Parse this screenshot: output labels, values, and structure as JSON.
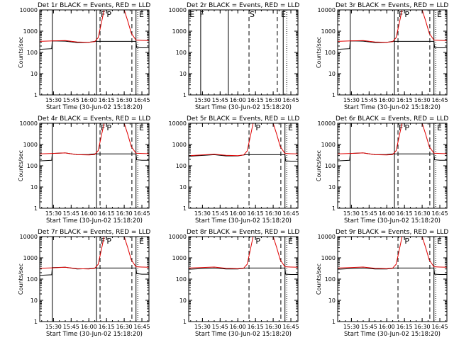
{
  "colors": {
    "background": "#ffffff",
    "axis": "#000000",
    "events": "#000000",
    "lld": "#e00000"
  },
  "x_ticks": [
    "15:30",
    "15:45",
    "16:00",
    "16:15",
    "16:30",
    "16:45"
  ],
  "y_ticks": [
    "1",
    "10",
    "100",
    "1000",
    "10000"
  ],
  "chart_data": [
    {
      "type": "line",
      "title": "Det 1r BLACK = Events, RED = LLD",
      "xlabel": "Start Time (30-Jun-02 15:18:20)",
      "ylabel": "Counts/sec",
      "show_ylabel": true,
      "show_tick_numbers": true,
      "yscale": "log",
      "ylim": [
        1,
        10000
      ],
      "xlim": [
        "15:18:20",
        "16:51:00"
      ],
      "lines": [
        {
          "style": "solid",
          "t": "15:29:00"
        },
        {
          "style": "solid",
          "t": "16:06:30"
        },
        {
          "style": "dashed",
          "t": "16:09:30"
        },
        {
          "style": "dashed",
          "t": "16:36:30"
        },
        {
          "style": "solid",
          "t": "16:40:00"
        },
        {
          "style": "dotted",
          "t": "16:41:30"
        }
      ],
      "markers": [
        {
          "text": "F",
          "t": "16:09:30"
        },
        {
          "text": "P",
          "t": "16:14:30"
        },
        {
          "text": "E",
          "t": "16:42:00"
        }
      ],
      "series": [
        {
          "name": "Events",
          "t": [
            "15:18:20",
            "15:28:30",
            "15:29:00",
            "15:40",
            "15:50",
            "16:00",
            "16:05",
            "16:06:30",
            "16:40:00",
            "16:40:30",
            "16:45",
            "16:51"
          ],
          "v": [
            140,
            150,
            350,
            340,
            290,
            300,
            330,
            330,
            330,
            170,
            165,
            165
          ]
        },
        {
          "name": "LLD",
          "t": [
            "15:18:20",
            "15:29",
            "15:40",
            "15:50",
            "16:00",
            "16:05",
            "16:08",
            "16:11",
            "16:13",
            "16:30",
            "16:33",
            "16:36",
            "16:40",
            "16:45",
            "16:51"
          ],
          "v": [
            330,
            350,
            360,
            310,
            300,
            320,
            500,
            3000,
            10000,
            10000,
            3000,
            800,
            380,
            370,
            360
          ]
        }
      ]
    },
    {
      "type": "line",
      "title": "Det 2r BLACK = Events, RED = LLD",
      "xlabel": "Start Time (30-Jun-02 15:18:20)",
      "ylabel": "",
      "show_ylabel": false,
      "show_tick_numbers": true,
      "yscale": "log",
      "ylim": [
        1,
        10000
      ],
      "xlim": [
        "15:18:20",
        "16:51:00"
      ],
      "lines": [
        {
          "style": "solid",
          "t": "15:28:30"
        },
        {
          "style": "solid",
          "t": "15:52:00"
        },
        {
          "style": "dashed",
          "t": "16:09:30"
        },
        {
          "style": "dashed",
          "t": "16:33:30"
        },
        {
          "style": "solid",
          "t": "16:38:30"
        },
        {
          "style": "dotted",
          "t": "16:41:30"
        }
      ],
      "markers": [
        {
          "text": "E",
          "t": "15:18:30"
        },
        {
          "text": "F",
          "t": "15:27:00"
        },
        {
          "text": "S",
          "t": "16:09:30"
        },
        {
          "text": "E",
          "t": "16:36:00"
        }
      ],
      "series": []
    },
    {
      "type": "line",
      "title": "Det 3r BLACK = Events, RED = LLD",
      "xlabel": "Start Time (30-Jun-02 15:18:20)",
      "ylabel": "Counts/sec",
      "show_ylabel": true,
      "show_tick_numbers": true,
      "yscale": "log",
      "ylim": [
        1,
        10000
      ],
      "xlim": [
        "15:18:20",
        "16:51:00"
      ],
      "lines": [
        {
          "style": "solid",
          "t": "15:29:00"
        },
        {
          "style": "solid",
          "t": "16:06:30"
        },
        {
          "style": "dashed",
          "t": "16:09:30"
        },
        {
          "style": "dashed",
          "t": "16:36:30"
        },
        {
          "style": "solid",
          "t": "16:40:00"
        },
        {
          "style": "dotted",
          "t": "16:41:30"
        }
      ],
      "markers": [
        {
          "text": "F",
          "t": "16:09:30"
        },
        {
          "text": "P",
          "t": "16:14:30"
        },
        {
          "text": "E",
          "t": "16:42:00"
        }
      ],
      "series": [
        {
          "name": "Events",
          "t": [
            "15:18:20",
            "15:28:30",
            "15:29:00",
            "15:40",
            "15:50",
            "16:00",
            "16:05",
            "16:06:30",
            "16:40:00",
            "16:40:30",
            "16:45",
            "16:51"
          ],
          "v": [
            140,
            150,
            350,
            340,
            290,
            300,
            330,
            330,
            330,
            170,
            165,
            165
          ]
        },
        {
          "name": "LLD",
          "t": [
            "15:18:20",
            "15:29",
            "15:40",
            "15:50",
            "16:00",
            "16:05",
            "16:08",
            "16:11",
            "16:13",
            "16:30",
            "16:33",
            "16:36",
            "16:40",
            "16:45",
            "16:51"
          ],
          "v": [
            330,
            350,
            360,
            310,
            300,
            320,
            500,
            3000,
            10000,
            10000,
            3000,
            800,
            380,
            370,
            360
          ]
        }
      ]
    },
    {
      "type": "line",
      "title": "Det 4r BLACK = Events, RED = LLD",
      "xlabel": "Start Time (30-Jun-02 15:18:20)",
      "ylabel": "Counts/sec",
      "show_ylabel": true,
      "show_tick_numbers": true,
      "yscale": "log",
      "ylim": [
        1,
        10000
      ],
      "xlim": [
        "15:18:20",
        "16:51:00"
      ],
      "lines": [
        {
          "style": "solid",
          "t": "15:29:00"
        },
        {
          "style": "solid",
          "t": "16:06:30"
        },
        {
          "style": "dashed",
          "t": "16:09:30"
        },
        {
          "style": "dashed",
          "t": "16:36:30"
        },
        {
          "style": "solid",
          "t": "16:40:00"
        },
        {
          "style": "dotted",
          "t": "16:41:30"
        }
      ],
      "markers": [
        {
          "text": "F",
          "t": "16:09:30"
        },
        {
          "text": "P",
          "t": "16:14:30"
        },
        {
          "text": "E",
          "t": "16:42:00"
        }
      ],
      "series": [
        {
          "name": "Events",
          "t": [
            "15:18:20",
            "15:28:30",
            "15:29:00",
            "15:40",
            "15:50",
            "16:00",
            "16:05",
            "16:06:30",
            "16:40:00",
            "16:40:30",
            "16:45",
            "16:51"
          ],
          "v": [
            170,
            180,
            380,
            400,
            330,
            340,
            360,
            360,
            360,
            190,
            180,
            180
          ]
        },
        {
          "name": "LLD",
          "t": [
            "15:18:20",
            "15:29",
            "15:40",
            "15:50",
            "16:00",
            "16:05",
            "16:08",
            "16:11",
            "16:13",
            "16:30",
            "16:33",
            "16:36",
            "16:40",
            "16:45",
            "16:51"
          ],
          "v": [
            360,
            380,
            400,
            330,
            320,
            340,
            520,
            3200,
            10000,
            10000,
            3000,
            800,
            390,
            380,
            370
          ]
        }
      ]
    },
    {
      "type": "line",
      "title": "Det 5r BLACK = Events, RED = LLD",
      "xlabel": "Start Time (30-Jun-02 15:18:20)",
      "ylabel": "",
      "show_ylabel": false,
      "show_tick_numbers": true,
      "yscale": "log",
      "ylim": [
        1,
        10000
      ],
      "xlim": [
        "15:18:20",
        "16:51:00"
      ],
      "lines": [
        {
          "style": "dashed",
          "t": "16:09:30"
        },
        {
          "style": "dashed",
          "t": "16:36:30"
        },
        {
          "style": "solid",
          "t": "16:40:00"
        },
        {
          "style": "dotted",
          "t": "16:41:30"
        }
      ],
      "markers": [
        {
          "text": "P",
          "t": "16:14:30"
        },
        {
          "text": "E",
          "t": "16:42:00"
        }
      ],
      "series": [
        {
          "name": "Events",
          "t": [
            "15:18:20",
            "15:40",
            "15:50",
            "16:00",
            "16:05",
            "16:07",
            "16:40:00",
            "16:40:30",
            "16:45",
            "16:51"
          ],
          "v": [
            280,
            330,
            290,
            290,
            320,
            330,
            330,
            170,
            165,
            165
          ]
        },
        {
          "name": "LLD",
          "t": [
            "15:18:20",
            "15:40",
            "15:50",
            "16:00",
            "16:05",
            "16:08",
            "16:11",
            "16:13",
            "16:30",
            "16:33",
            "16:36",
            "16:40",
            "16:45",
            "16:51"
          ],
          "v": [
            300,
            350,
            310,
            300,
            320,
            500,
            3000,
            10000,
            10000,
            3000,
            800,
            380,
            370,
            360
          ]
        }
      ]
    },
    {
      "type": "line",
      "title": "Det 6r BLACK = Events, RED = LLD",
      "xlabel": "Start Time (30-Jun-02 15:18:20)",
      "ylabel": "Counts/sec",
      "show_ylabel": true,
      "show_tick_numbers": true,
      "yscale": "log",
      "ylim": [
        1,
        10000
      ],
      "xlim": [
        "15:18:20",
        "16:51:00"
      ],
      "lines": [
        {
          "style": "solid",
          "t": "15:29:00"
        },
        {
          "style": "solid",
          "t": "16:06:30"
        },
        {
          "style": "dashed",
          "t": "16:09:30"
        },
        {
          "style": "dashed",
          "t": "16:36:30"
        },
        {
          "style": "solid",
          "t": "16:40:00"
        },
        {
          "style": "dotted",
          "t": "16:41:30"
        }
      ],
      "markers": [
        {
          "text": "F",
          "t": "16:09:30"
        },
        {
          "text": "P",
          "t": "16:14:30"
        },
        {
          "text": "E",
          "t": "16:42:00"
        }
      ],
      "series": [
        {
          "name": "Events",
          "t": [
            "15:18:20",
            "15:28:30",
            "15:29:00",
            "15:40",
            "15:50",
            "16:00",
            "16:05",
            "16:06:30",
            "16:40:00",
            "16:40:30",
            "16:45",
            "16:51"
          ],
          "v": [
            170,
            180,
            380,
            400,
            330,
            340,
            360,
            360,
            360,
            190,
            180,
            180
          ]
        },
        {
          "name": "LLD",
          "t": [
            "15:18:20",
            "15:29",
            "15:40",
            "15:50",
            "16:00",
            "16:05",
            "16:08",
            "16:11",
            "16:13",
            "16:30",
            "16:33",
            "16:36",
            "16:40",
            "16:45",
            "16:51"
          ],
          "v": [
            360,
            380,
            400,
            330,
            320,
            340,
            520,
            3200,
            10000,
            10000,
            3000,
            800,
            390,
            380,
            370
          ]
        }
      ]
    },
    {
      "type": "line",
      "title": "Det 7r BLACK = Events, RED = LLD",
      "xlabel": "Start Time (30-Jun-02 15:18:20)",
      "ylabel": "Counts/sec",
      "show_ylabel": true,
      "show_tick_numbers": true,
      "yscale": "log",
      "ylim": [
        1,
        10000
      ],
      "xlim": [
        "15:18:20",
        "16:51:00"
      ],
      "lines": [
        {
          "style": "solid",
          "t": "15:29:00"
        },
        {
          "style": "solid",
          "t": "16:06:30"
        },
        {
          "style": "dashed",
          "t": "16:09:30"
        },
        {
          "style": "dashed",
          "t": "16:36:30"
        },
        {
          "style": "solid",
          "t": "16:40:00"
        },
        {
          "style": "dotted",
          "t": "16:41:30"
        }
      ],
      "markers": [
        {
          "text": "F",
          "t": "16:09:30"
        },
        {
          "text": "P",
          "t": "16:14:30"
        },
        {
          "text": "E",
          "t": "16:42:00"
        }
      ],
      "series": [
        {
          "name": "Events",
          "t": [
            "15:18:20",
            "15:28:30",
            "15:29:00",
            "15:40",
            "15:50",
            "16:00",
            "16:05",
            "16:06:30",
            "16:40:00",
            "16:40:30",
            "16:45",
            "16:51"
          ],
          "v": [
            150,
            160,
            350,
            360,
            300,
            310,
            330,
            330,
            330,
            180,
            170,
            170
          ]
        },
        {
          "name": "LLD",
          "t": [
            "15:18:20",
            "15:29",
            "15:40",
            "15:50",
            "16:00",
            "16:05",
            "16:08",
            "16:11",
            "16:13",
            "16:30",
            "16:33",
            "16:36",
            "16:40",
            "16:45",
            "16:51"
          ],
          "v": [
            320,
            340,
            360,
            310,
            300,
            320,
            500,
            3000,
            10000,
            10000,
            3000,
            800,
            380,
            370,
            360
          ]
        }
      ]
    },
    {
      "type": "line",
      "title": "Det 8r BLACK = Events, RED = LLD",
      "xlabel": "Start Time (30-Jun-02 15:18:20)",
      "ylabel": "",
      "show_ylabel": false,
      "show_tick_numbers": true,
      "yscale": "log",
      "ylim": [
        1,
        10000
      ],
      "xlim": [
        "15:18:20",
        "16:51:00"
      ],
      "lines": [
        {
          "style": "dashed",
          "t": "16:09:30"
        },
        {
          "style": "dashed",
          "t": "16:36:30"
        },
        {
          "style": "solid",
          "t": "16:40:00"
        },
        {
          "style": "dotted",
          "t": "16:41:30"
        }
      ],
      "markers": [
        {
          "text": "P",
          "t": "16:14:30"
        },
        {
          "text": "E",
          "t": "16:42:00"
        }
      ],
      "series": [
        {
          "name": "Events",
          "t": [
            "15:18:20",
            "15:40",
            "15:50",
            "16:00",
            "16:05",
            "16:07",
            "16:40:00",
            "16:40:30",
            "16:45",
            "16:51"
          ],
          "v": [
            290,
            330,
            300,
            300,
            320,
            330,
            330,
            170,
            165,
            165
          ]
        },
        {
          "name": "LLD",
          "t": [
            "15:18:20",
            "15:40",
            "15:50",
            "16:00",
            "16:05",
            "16:08",
            "16:11",
            "16:13",
            "16:30",
            "16:33",
            "16:36",
            "16:40",
            "16:45",
            "16:51"
          ],
          "v": [
            330,
            370,
            320,
            310,
            330,
            500,
            3000,
            10000,
            10000,
            3000,
            800,
            380,
            370,
            360
          ]
        }
      ]
    },
    {
      "type": "line",
      "title": "Det 9r BLACK = Events, RED = LLD",
      "xlabel": "Start Time (30-Jun-02 15:18:20)",
      "ylabel": "Counts/sec",
      "show_ylabel": true,
      "show_tick_numbers": true,
      "yscale": "log",
      "ylim": [
        1,
        10000
      ],
      "xlim": [
        "15:18:20",
        "16:51:00"
      ],
      "lines": [
        {
          "style": "dashed",
          "t": "16:09:30"
        },
        {
          "style": "dashed",
          "t": "16:36:30"
        },
        {
          "style": "solid",
          "t": "16:40:00"
        },
        {
          "style": "dotted",
          "t": "16:41:30"
        }
      ],
      "markers": [
        {
          "text": "P",
          "t": "16:14:30"
        },
        {
          "text": "E",
          "t": "16:42:00"
        }
      ],
      "series": [
        {
          "name": "Events",
          "t": [
            "15:18:20",
            "15:40",
            "15:50",
            "16:00",
            "16:05",
            "16:07",
            "16:40:00",
            "16:40:30",
            "16:45",
            "16:51"
          ],
          "v": [
            290,
            330,
            300,
            300,
            320,
            330,
            330,
            170,
            165,
            165
          ]
        },
        {
          "name": "LLD",
          "t": [
            "15:18:20",
            "15:40",
            "15:50",
            "16:00",
            "16:05",
            "16:08",
            "16:11",
            "16:13",
            "16:30",
            "16:33",
            "16:36",
            "16:40",
            "16:45",
            "16:51"
          ],
          "v": [
            330,
            370,
            320,
            310,
            330,
            500,
            3000,
            10000,
            10000,
            3000,
            800,
            380,
            370,
            360
          ]
        }
      ]
    }
  ]
}
